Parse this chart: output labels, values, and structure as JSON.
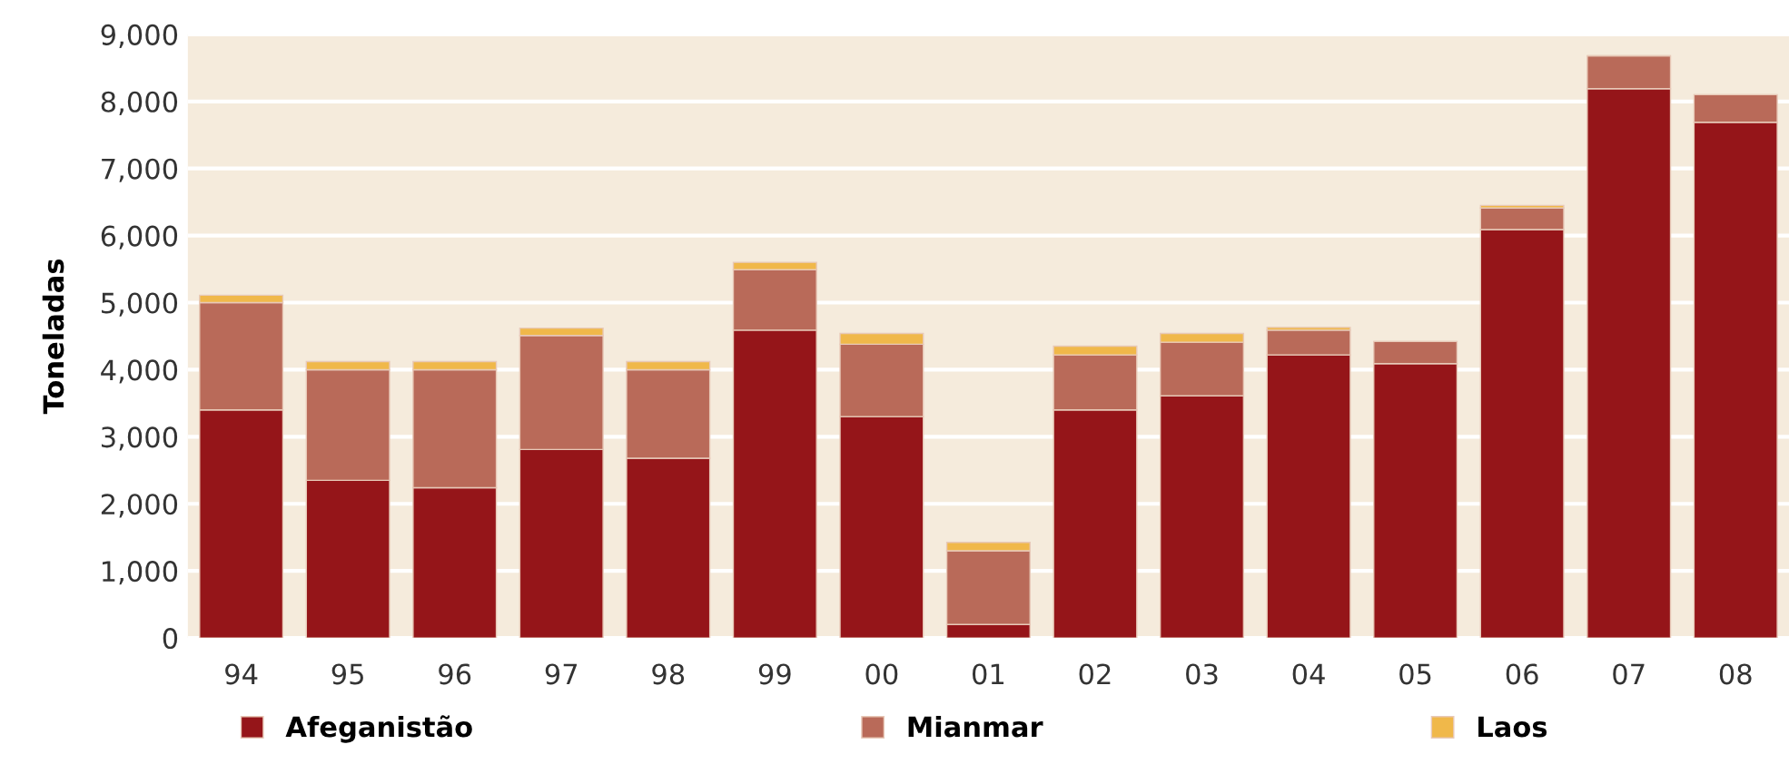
{
  "chart_data": {
    "type": "bar",
    "stacked": true,
    "ylabel": "Toneladas",
    "categories": [
      "94",
      "95",
      "96",
      "97",
      "98",
      "99",
      "00",
      "01",
      "02",
      "03",
      "04",
      "05",
      "06",
      "07",
      "08"
    ],
    "series": [
      {
        "name": "Afeganistão",
        "color": "#951519",
        "values": [
          3400,
          2350,
          2240,
          2810,
          2680,
          4590,
          3300,
          200,
          3400,
          3610,
          4220,
          4090,
          6090,
          8190,
          7690
        ]
      },
      {
        "name": "Mianmar",
        "color": "#b96a59",
        "values": [
          1600,
          1650,
          1760,
          1700,
          1320,
          900,
          1080,
          1100,
          820,
          800,
          370,
          330,
          320,
          490,
          410
        ]
      },
      {
        "name": "Laos",
        "color": "#f0b84a",
        "values": [
          110,
          120,
          120,
          110,
          120,
          110,
          160,
          125,
          130,
          130,
          40,
          null,
          40,
          null,
          null
        ]
      }
    ],
    "ylim": [
      0,
      9000
    ],
    "yticks": [
      {
        "value": 0,
        "label": "0"
      },
      {
        "value": 1000,
        "label": "1,000"
      },
      {
        "value": 2000,
        "label": "2,000"
      },
      {
        "value": 3000,
        "label": "3,000"
      },
      {
        "value": 4000,
        "label": "4,000"
      },
      {
        "value": 5000,
        "label": "5,000"
      },
      {
        "value": 6000,
        "label": "6,000"
      },
      {
        "value": 7000,
        "label": "7,000"
      },
      {
        "value": 8000,
        "label": "8,000"
      },
      {
        "value": 9000,
        "label": "9,000"
      }
    ],
    "grid": "y",
    "legend": "bottom"
  }
}
